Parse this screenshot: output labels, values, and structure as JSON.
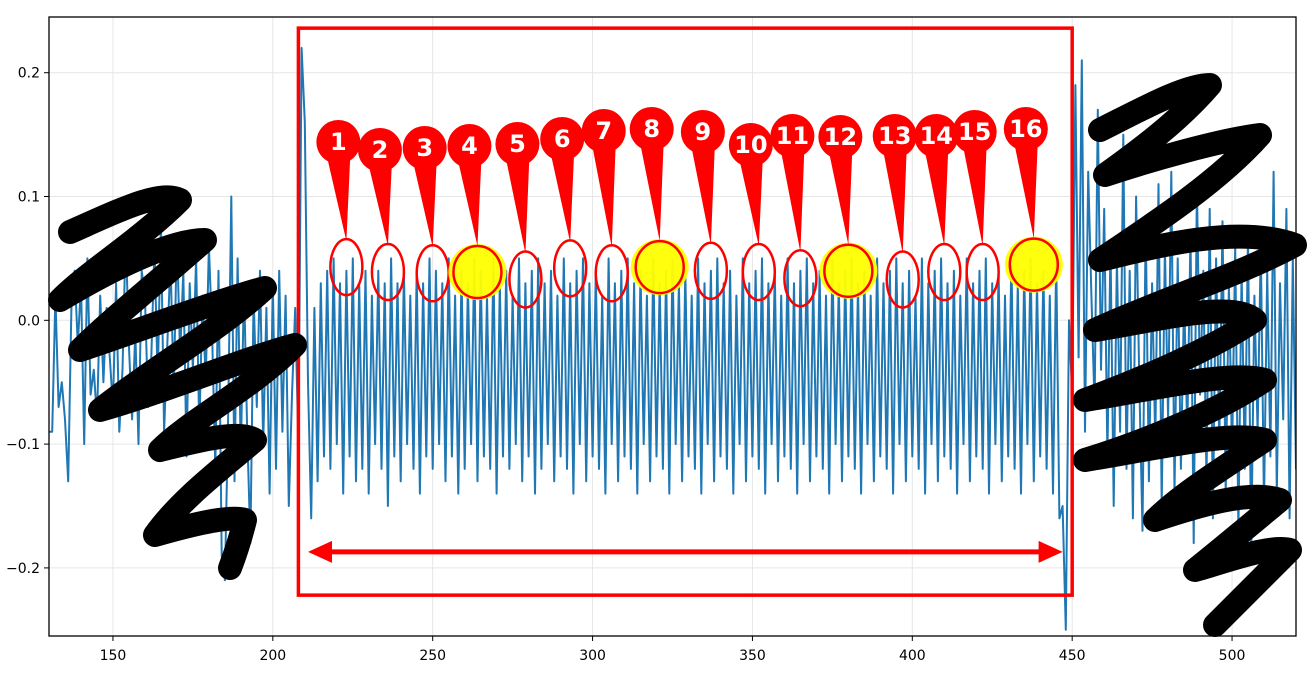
{
  "chart_data": {
    "type": "line",
    "title": "",
    "xlabel": "",
    "ylabel": "",
    "xlim": [
      130,
      520
    ],
    "ylim": [
      -0.255,
      0.245
    ],
    "x_ticks": [
      150,
      200,
      250,
      300,
      350,
      400,
      450,
      500
    ],
    "y_ticks": [
      -0.2,
      -0.1,
      0.0,
      0.1,
      0.2
    ],
    "x_tick_labels": [
      "150",
      "200",
      "250",
      "300",
      "350",
      "400",
      "450",
      "500"
    ],
    "y_tick_labels": [
      "−0.2",
      "−0.1",
      "0.0",
      "0.1",
      "0.2"
    ],
    "grid": true,
    "line_color": "#1f77b4",
    "series": [
      {
        "x_start": 130,
        "x_step": 1,
        "values": [
          -0.09,
          -0.09,
          0.02,
          -0.07,
          -0.05,
          -0.08,
          -0.13,
          0.01,
          0.04,
          -0.02,
          0.03,
          -0.1,
          0.05,
          -0.06,
          -0.04,
          -0.08,
          0.02,
          -0.05,
          0.01,
          -0.03,
          -0.07,
          0.03,
          -0.09,
          -0.04,
          0.07,
          -0.02,
          -0.08,
          -0.01,
          -0.1,
          0.04,
          0.02,
          -0.07,
          -0.03,
          0.06,
          -0.05,
          0.08,
          -0.09,
          -0.02,
          0.05,
          -0.06,
          0.07,
          -0.03,
          0.04,
          -0.11,
          0.03,
          -0.04,
          0.05,
          -0.09,
          0.02,
          -0.05,
          0.06,
          -0.01,
          -0.12,
          0.04,
          -0.19,
          -0.21,
          -0.08,
          0.1,
          -0.13,
          0.05,
          -0.11,
          0.03,
          -0.09,
          -0.18,
          0.02,
          -0.07,
          0.04,
          -0.1,
          0.01,
          -0.14,
          0.03,
          -0.12,
          0.04,
          -0.09,
          0.02,
          -0.15,
          -0.06,
          0.01,
          -0.1,
          0.22,
          0.16,
          -0.05,
          -0.16,
          0.01,
          -0.13,
          0.03,
          -0.11,
          0.04,
          -0.12,
          0.05,
          -0.1,
          0.03,
          -0.14,
          0.04,
          -0.11,
          0.05,
          -0.13,
          0.03,
          -0.12,
          0.04,
          -0.14,
          0.02,
          -0.1,
          0.04,
          -0.12,
          0.03,
          -0.15,
          0.05,
          -0.11,
          0.03,
          -0.13,
          0.04,
          -0.1,
          0.02,
          -0.12,
          0.04,
          -0.14,
          0.03,
          -0.11,
          0.05,
          -0.12,
          0.04,
          -0.1,
          0.03,
          -0.13,
          0.05,
          -0.11,
          0.02,
          -0.14,
          0.04,
          -0.12,
          0.03,
          -0.1,
          0.05,
          -0.13,
          0.04,
          -0.11,
          0.02,
          -0.12,
          0.05,
          -0.14,
          0.03,
          -0.11,
          0.04,
          -0.12,
          0.02,
          -0.1,
          0.05,
          -0.13,
          0.03,
          -0.11,
          0.04,
          -0.14,
          0.05,
          -0.12,
          0.03,
          -0.1,
          0.04,
          -0.13,
          0.02,
          -0.11,
          0.05,
          -0.12,
          0.03,
          -0.14,
          0.04,
          -0.1,
          0.05,
          -0.13,
          0.03,
          -0.11,
          0.04,
          -0.12,
          0.02,
          -0.14,
          0.05,
          -0.1,
          0.03,
          -0.13,
          0.04,
          -0.11,
          0.05,
          -0.12,
          0.03,
          -0.14,
          0.04,
          -0.1,
          0.02,
          -0.13,
          0.05,
          -0.11,
          0.03,
          -0.12,
          0.04,
          -0.14,
          0.05,
          -0.1,
          0.03,
          -0.13,
          0.04,
          -0.11,
          0.02,
          -0.12,
          0.05,
          -0.14,
          0.03,
          -0.1,
          0.04,
          -0.13,
          0.05,
          -0.11,
          0.03,
          -0.12,
          0.04,
          -0.14,
          0.02,
          -0.1,
          0.05,
          -0.13,
          0.03,
          -0.11,
          0.04,
          -0.12,
          0.05,
          -0.14,
          0.03,
          -0.1,
          0.04,
          -0.13,
          0.02,
          -0.11,
          0.05,
          -0.12,
          0.03,
          -0.14,
          0.04,
          -0.1,
          0.05,
          -0.13,
          0.03,
          -0.11,
          0.04,
          -0.12,
          0.02,
          -0.14,
          0.05,
          -0.1,
          0.03,
          -0.13,
          0.04,
          -0.11,
          0.05,
          -0.12,
          0.03,
          -0.14,
          0.04,
          -0.1,
          0.02,
          -0.13,
          0.05,
          -0.11,
          0.03,
          -0.12,
          0.04,
          -0.14,
          0.05,
          -0.1,
          0.03,
          -0.13,
          0.04,
          -0.11,
          0.02,
          -0.12,
          0.05,
          -0.14,
          0.03,
          -0.1,
          0.04,
          -0.13,
          0.05,
          -0.11,
          0.03,
          -0.12,
          0.04,
          -0.14,
          0.02,
          -0.1,
          0.05,
          -0.13,
          0.03,
          -0.11,
          0.04,
          -0.12,
          0.05,
          -0.14,
          0.03,
          -0.1,
          0.04,
          -0.13,
          0.02,
          -0.11,
          0.05,
          -0.12,
          0.03,
          -0.14,
          0.04,
          -0.1,
          0.05,
          -0.13,
          0.03,
          -0.11,
          0.04,
          -0.12,
          0.02,
          -0.14,
          0.05,
          -0.16,
          -0.15,
          -0.25,
          0.0,
          -0.06,
          0.19,
          -0.03,
          0.21,
          -0.09,
          0.12,
          0.02,
          -0.07,
          0.17,
          -0.04,
          0.09,
          -0.11,
          0.06,
          -0.15,
          0.05,
          -0.09,
          0.15,
          -0.12,
          0.04,
          -0.16,
          0.1,
          -0.05,
          -0.17,
          0.08,
          -0.13,
          0.03,
          -0.1,
          0.11,
          -0.15,
          0.06,
          -0.08,
          0.12,
          -0.14,
          0.05,
          -0.12,
          0.02,
          -0.09,
          0.07,
          -0.18,
          0.11,
          -0.06,
          0.04,
          -0.13,
          0.09,
          -0.16,
          0.05,
          -0.1,
          0.08,
          -0.14,
          0.03,
          -0.11,
          0.06,
          -0.17,
          0.04,
          -0.12,
          0.07,
          -0.19,
          0.02,
          -0.09,
          0.06,
          -0.15,
          0.04,
          -0.11,
          0.12,
          -0.14,
          0.03,
          -0.08,
          0.09,
          -0.16,
          0.05,
          -0.12,
          0.07,
          -0.13,
          0.02,
          -0.1,
          0.06,
          -0.11,
          0.04,
          -0.09,
          -0.12,
          0.05
        ]
      }
    ],
    "annotations": {
      "box_x": [
        208,
        450
      ],
      "box_y": [
        -0.222,
        0.236
      ],
      "arrow": {
        "x": [
          211,
          447
        ],
        "y": -0.187,
        "double_headed": true
      },
      "markers": [
        {
          "label": "1",
          "x": 223,
          "y": 0.043,
          "highlight": false
        },
        {
          "label": "2",
          "x": 236,
          "y": 0.039,
          "highlight": false
        },
        {
          "label": "3",
          "x": 250,
          "y": 0.038,
          "highlight": false
        },
        {
          "label": "4",
          "x": 264,
          "y": 0.039,
          "highlight": true
        },
        {
          "label": "5",
          "x": 279,
          "y": 0.033,
          "highlight": false
        },
        {
          "label": "6",
          "x": 293,
          "y": 0.042,
          "highlight": false
        },
        {
          "label": "7",
          "x": 306,
          "y": 0.038,
          "highlight": false
        },
        {
          "label": "8",
          "x": 321,
          "y": 0.043,
          "highlight": true
        },
        {
          "label": "9",
          "x": 337,
          "y": 0.04,
          "highlight": false
        },
        {
          "label": "10",
          "x": 352,
          "y": 0.039,
          "highlight": false
        },
        {
          "label": "11",
          "x": 365,
          "y": 0.034,
          "highlight": false
        },
        {
          "label": "12",
          "x": 380,
          "y": 0.04,
          "highlight": true
        },
        {
          "label": "13",
          "x": 397,
          "y": 0.033,
          "highlight": false
        },
        {
          "label": "14",
          "x": 410,
          "y": 0.039,
          "highlight": false
        },
        {
          "label": "15",
          "x": 422,
          "y": 0.039,
          "highlight": false
        },
        {
          "label": "16",
          "x": 438,
          "y": 0.045,
          "highlight": true
        }
      ],
      "colors": {
        "annotation": "#ff0000",
        "highlight": "#ffff00",
        "scribble": "#000000"
      }
    }
  }
}
